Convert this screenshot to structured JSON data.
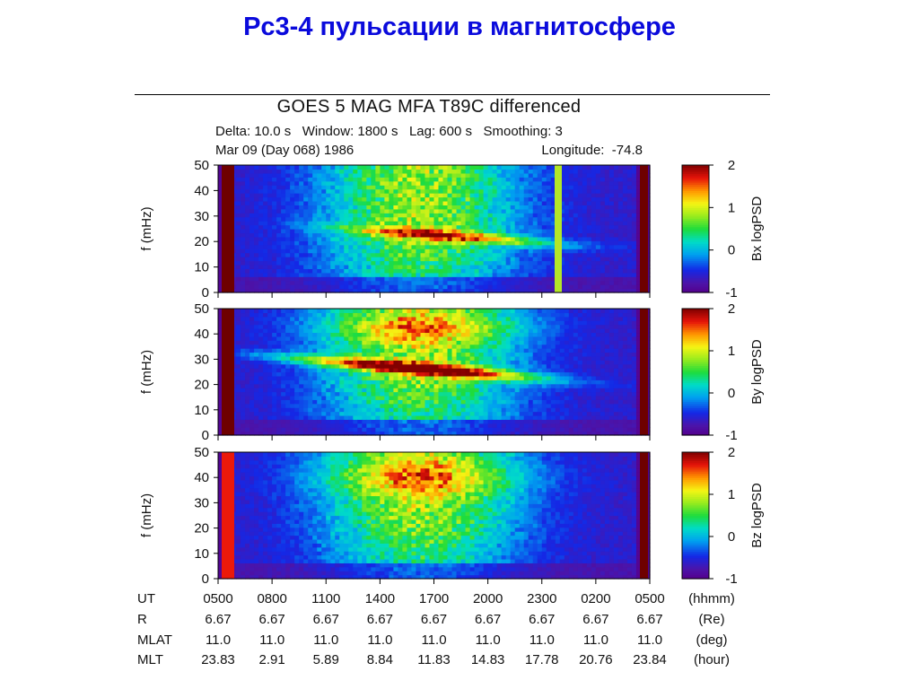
{
  "slide": {
    "title": "Pc3-4 пульсации в магнитосфере"
  },
  "figure": {
    "title": "GOES 5 MAG MFA T89C differenced",
    "line1": "Delta: 10.0 s   Window: 1800 s   Lag: 600 s   Smoothing: 3",
    "date": "Mar 09 (Day 068) 1986",
    "longitude": "Longitude:  -74.8"
  },
  "chart_data": {
    "type": "heatmap",
    "ylabel": "f (mHz)",
    "yticks": [
      0,
      10,
      20,
      30,
      40,
      50
    ],
    "ylim": [
      0,
      50
    ],
    "colorbar_range": [
      -1,
      2
    ],
    "colorbar_ticks": [
      -1,
      0,
      1,
      2
    ],
    "panels": [
      {
        "component": "Bx",
        "colorbar_label": "Bx  logPSD"
      },
      {
        "component": "By",
        "colorbar_label": "By  logPSD"
      },
      {
        "component": "Bz",
        "colorbar_label": "Bz  logPSD"
      }
    ]
  },
  "axis_table": {
    "rows": [
      {
        "label": "UT",
        "values": [
          "0500",
          "0800",
          "1100",
          "1400",
          "1700",
          "2000",
          "2300",
          "0200",
          "0500"
        ],
        "unit": "(hhmm)"
      },
      {
        "label": "R",
        "values": [
          "6.67",
          "6.67",
          "6.67",
          "6.67",
          "6.67",
          "6.67",
          "6.67",
          "6.67",
          "6.67"
        ],
        "unit": "(Re)"
      },
      {
        "label": "MLAT",
        "values": [
          "11.0",
          "11.0",
          "11.0",
          "11.0",
          "11.0",
          "11.0",
          "11.0",
          "11.0",
          "11.0"
        ],
        "unit": "(deg)"
      },
      {
        "label": "MLT",
        "values": [
          "23.83",
          "2.91",
          "5.89",
          "8.84",
          "11.83",
          "14.83",
          "17.78",
          "20.76",
          "23.84"
        ],
        "unit": "(hour)"
      }
    ]
  }
}
